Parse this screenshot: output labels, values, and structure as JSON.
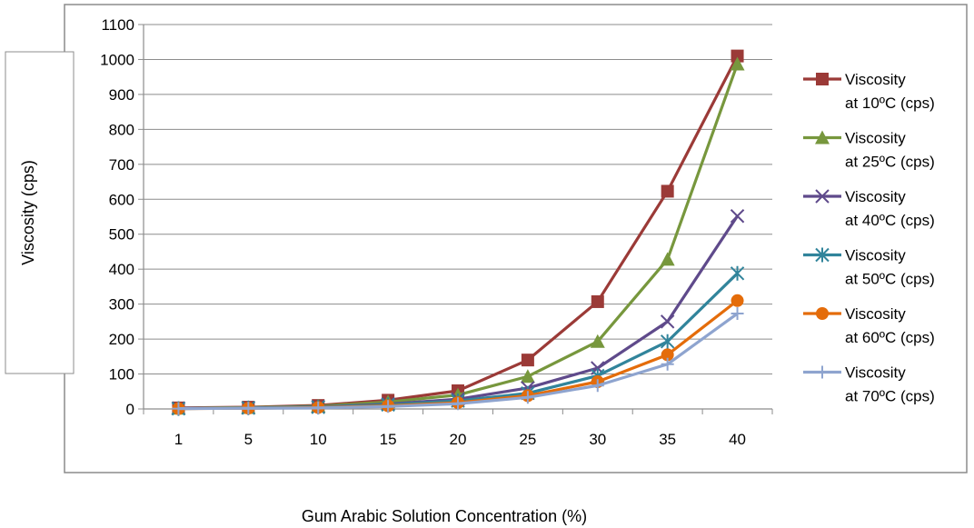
{
  "chart_data": {
    "type": "line",
    "title": "",
    "xlabel": "Gum Arabic Solution Concentration (%)",
    "ylabel": "Viscosity (cps)",
    "categories": [
      "1",
      "5",
      "10",
      "15",
      "20",
      "25",
      "30",
      "35",
      "40"
    ],
    "ylim": [
      0,
      1100
    ],
    "yticks": [
      0,
      100,
      200,
      300,
      400,
      500,
      600,
      700,
      800,
      900,
      1000,
      1100
    ],
    "grid": true,
    "legend_position": "right",
    "series": [
      {
        "name_line1": "Viscosity",
        "name_line2": "at 10ºC (cps)",
        "color": "#9B3A37",
        "marker": "square",
        "values": [
          3,
          5,
          10,
          25,
          52,
          140,
          307,
          623,
          1010
        ]
      },
      {
        "name_line1": "Viscosity",
        "name_line2": "at 25ºC (cps)",
        "color": "#77973D",
        "marker": "triangle",
        "values": [
          2,
          4,
          8,
          20,
          40,
          93,
          193,
          428,
          987
        ]
      },
      {
        "name_line1": "Viscosity",
        "name_line2": "at 40ºC (cps)",
        "color": "#5F4A8B",
        "marker": "x",
        "values": [
          2,
          3,
          6,
          14,
          28,
          60,
          117,
          250,
          552
        ]
      },
      {
        "name_line1": "Viscosity",
        "name_line2": "at 50ºC (cps)",
        "color": "#31849B",
        "marker": "star",
        "values": [
          1,
          3,
          5,
          12,
          23,
          45,
          95,
          193,
          388
        ]
      },
      {
        "name_line1": "Viscosity",
        "name_line2": "at 60ºC (cps)",
        "color": "#E46C0A",
        "marker": "circle",
        "values": [
          1,
          2,
          4,
          9,
          18,
          38,
          78,
          155,
          310
        ]
      },
      {
        "name_line1": "Viscosity",
        "name_line2": "at 70ºC (cps)",
        "color": "#8EA4CF",
        "marker": "plus",
        "values": [
          1,
          2,
          3,
          7,
          15,
          33,
          67,
          128,
          273
        ]
      }
    ]
  }
}
